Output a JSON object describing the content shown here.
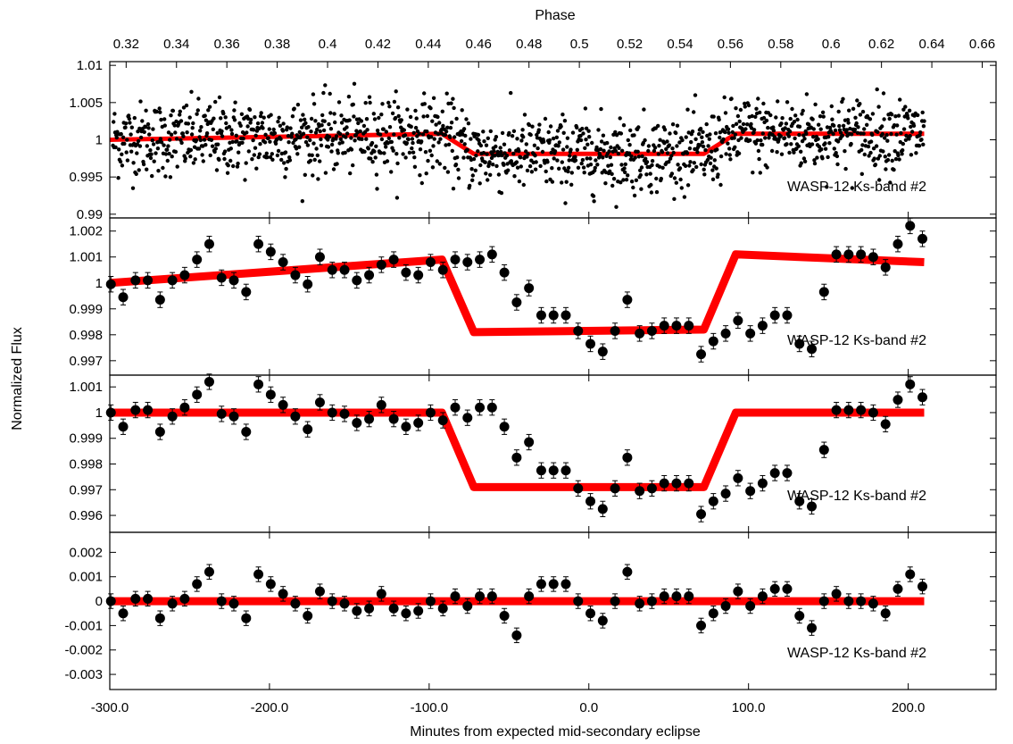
{
  "chart_data": {
    "type": "scatter",
    "xlabel": "Minutes from expected mid-secondary eclipse",
    "ylabel": "Normalized Flux",
    "x2label": "Phase",
    "xlim": [
      -300,
      255
    ],
    "x_ticks": [
      -300,
      -200,
      -100,
      0,
      100,
      200
    ],
    "x_tick_labels": [
      "-300.0",
      "-200.0",
      "-100.0",
      "0.0",
      "100.0",
      "200.0"
    ],
    "phase_lim": [
      0.3135,
      0.6655
    ],
    "phase_ticks": [
      0.32,
      0.34,
      0.36,
      0.38,
      0.4,
      0.42,
      0.44,
      0.46,
      0.48,
      0.5,
      0.52,
      0.54,
      0.56,
      0.58,
      0.6,
      0.62,
      0.64,
      0.66
    ],
    "phase_tick_labels": [
      "0.32",
      "0.34",
      "0.36",
      "0.38",
      "0.4",
      "0.42",
      "0.44",
      "0.46",
      "0.48",
      "0.5",
      "0.52",
      "0.54",
      "0.56",
      "0.58",
      "0.6",
      "0.62",
      "0.64",
      "0.66"
    ],
    "binned_x": [
      -299.3,
      -291.6,
      -283.9,
      -276.2,
      -268.5,
      -260.8,
      -253.1,
      -245.4,
      -237.7,
      -230.0,
      -222.3,
      -214.6,
      -206.9,
      -199.2,
      -191.5,
      -183.8,
      -176.1,
      -168.4,
      -160.7,
      -153.0,
      -145.3,
      -137.6,
      -129.9,
      -122.2,
      -114.5,
      -106.8,
      -99.1,
      -91.4,
      -83.7,
      -76.0,
      -68.3,
      -60.6,
      -52.9,
      -45.2,
      -37.5,
      -29.8,
      -22.1,
      -14.4,
      -6.7,
      1.0,
      8.7,
      16.4,
      24.1,
      31.8,
      39.5,
      47.2,
      54.9,
      62.6,
      70.3,
      78.0,
      85.7,
      93.4,
      101.1,
      108.8,
      116.5,
      124.2,
      131.9,
      139.6,
      147.3,
      155.0,
      162.7,
      170.4,
      178.1,
      185.8,
      193.5,
      201.2,
      208.9
    ],
    "panels": [
      {
        "name": "unbinned",
        "label": "WASP-12 Ks-band #2",
        "ylim": [
          0.9895,
          1.0105
        ],
        "y_ticks": [
          0.99,
          0.995,
          1.0,
          1.005,
          1.01
        ],
        "y_tick_labels": [
          "0.99",
          "0.995",
          "1",
          "1.005",
          "1.01"
        ],
        "unbinned_points": {
          "count": 1500,
          "scatter": 0.0025,
          "description": "individual photometric points scattered around the model"
        },
        "model": {
          "x": [
            -300,
            -92,
            -72,
            72,
            92,
            210
          ],
          "y": [
            1.0,
            1.0008,
            0.9981,
            0.9981,
            1.0008,
            1.0008
          ]
        },
        "error_bars": false
      },
      {
        "name": "binned-with-baseline",
        "label": "WASP-12 Ks-band #2",
        "ylim": [
          0.99665,
          1.0023
        ],
        "y_ticks": [
          0.997,
          0.998,
          0.999,
          1.0,
          1.001,
          1.002
        ],
        "y_tick_labels": [
          "0.997",
          "0.998",
          "0.999",
          "1",
          "1.001",
          "1.002"
        ],
        "y": [
          0.99995,
          0.99945,
          1.0001,
          1.0001,
          0.99935,
          1.0001,
          1.0003,
          1.0009,
          1.0015,
          1.0002,
          1.0001,
          0.99965,
          1.0015,
          1.0012,
          1.0008,
          1.0003,
          0.99995,
          1.001,
          1.0005,
          1.0005,
          1.0001,
          1.0003,
          1.0007,
          1.0009,
          1.0004,
          1.0003,
          1.0008,
          1.0005,
          1.0009,
          1.0008,
          1.0009,
          1.0011,
          1.0004,
          0.99925,
          0.9998,
          0.99875,
          0.99875,
          0.99875,
          0.99815,
          0.99765,
          0.99735,
          0.99815,
          0.99935,
          0.99805,
          0.99815,
          0.99835,
          0.99835,
          0.99835,
          0.99725,
          0.99775,
          0.99805,
          0.99855,
          0.99805,
          0.99835,
          0.99875,
          0.99875,
          0.99765,
          0.99745,
          0.99965,
          1.0011,
          1.0011,
          1.0011,
          1.001,
          1.0006,
          1.0015,
          1.0022,
          1.0017
        ],
        "yerr": 0.0003,
        "model": {
          "x": [
            -300,
            -92,
            -72,
            72,
            92,
            210
          ],
          "y": [
            1.0,
            1.0009,
            0.9981,
            0.9982,
            1.0011,
            1.0008
          ]
        },
        "error_bars": true
      },
      {
        "name": "binned-detrended",
        "label": "WASP-12 Ks-band #2",
        "ylim": [
          0.99555,
          1.00125
        ],
        "y_ticks": [
          0.996,
          0.997,
          0.998,
          0.999,
          1.0,
          1.001
        ],
        "y_tick_labels": [
          "0.996",
          "0.997",
          "0.998",
          "0.999",
          "1",
          "1.001"
        ],
        "y": [
          1.0,
          0.99945,
          1.0001,
          1.0001,
          0.99925,
          0.99985,
          1.0002,
          1.0007,
          1.0012,
          0.99995,
          0.99985,
          0.99925,
          1.0011,
          1.0007,
          1.0003,
          0.99985,
          0.99935,
          1.0004,
          1.0,
          0.99995,
          0.9996,
          0.99975,
          1.0003,
          0.99975,
          0.99945,
          0.9996,
          1.0,
          0.9997,
          1.0002,
          0.9998,
          1.0002,
          1.0002,
          0.99945,
          0.99825,
          0.99885,
          0.99775,
          0.99775,
          0.99775,
          0.99705,
          0.99655,
          0.99625,
          0.99705,
          0.99825,
          0.99695,
          0.99705,
          0.99725,
          0.99725,
          0.99725,
          0.99605,
          0.99655,
          0.99685,
          0.99745,
          0.99695,
          0.99725,
          0.99765,
          0.99765,
          0.99655,
          0.99635,
          0.99855,
          1.0001,
          1.0001,
          1.0001,
          1.0,
          0.99955,
          1.0005,
          1.0011,
          1.0006
        ],
        "yerr": 0.0003,
        "model": {
          "x": [
            -300,
            -92,
            -72,
            72,
            92,
            210
          ],
          "y": [
            1.0,
            1.0,
            0.9971,
            0.9971,
            1.0,
            1.0
          ]
        },
        "error_bars": true
      },
      {
        "name": "residuals",
        "label": "WASP-12 Ks-band #2",
        "ylim": [
          -0.0034,
          0.0026
        ],
        "y_ticks": [
          -0.003,
          -0.002,
          -0.001,
          0.0,
          0.001,
          0.002
        ],
        "y_tick_labels": [
          "-0.003",
          "-0.002",
          "-0.001",
          "0",
          "0.001",
          "0.002"
        ],
        "y": [
          0.0,
          -0.0005,
          0.0001,
          0.0001,
          -0.0007,
          -0.0001,
          0.0001,
          0.0007,
          0.0012,
          0.0,
          -0.0001,
          -0.0007,
          0.0011,
          0.0007,
          0.0003,
          -0.0001,
          -0.0006,
          0.0004,
          0.0,
          -0.0001,
          -0.0004,
          -0.0003,
          0.0003,
          -0.0003,
          -0.0005,
          -0.0004,
          0.0,
          -0.0003,
          0.0002,
          -0.0002,
          0.0002,
          0.0002,
          -0.0006,
          -0.0014,
          0.0002,
          0.0007,
          0.0007,
          0.0007,
          0.0,
          -0.0005,
          -0.0008,
          0.0,
          0.0012,
          -0.0001,
          0.0,
          0.0002,
          0.0002,
          0.0002,
          -0.001,
          -0.0005,
          -0.0002,
          0.0004,
          -0.0002,
          0.0002,
          0.0005,
          0.0005,
          -0.0006,
          -0.0011,
          0.0,
          0.0003,
          0.0,
          0.0,
          -0.0001,
          -0.0005,
          0.0005,
          0.0011,
          0.0006
        ],
        "yerr": 0.0003,
        "model": {
          "x": [
            -300,
            210
          ],
          "y": [
            0.0,
            0.0
          ]
        },
        "error_bars": true
      }
    ]
  }
}
